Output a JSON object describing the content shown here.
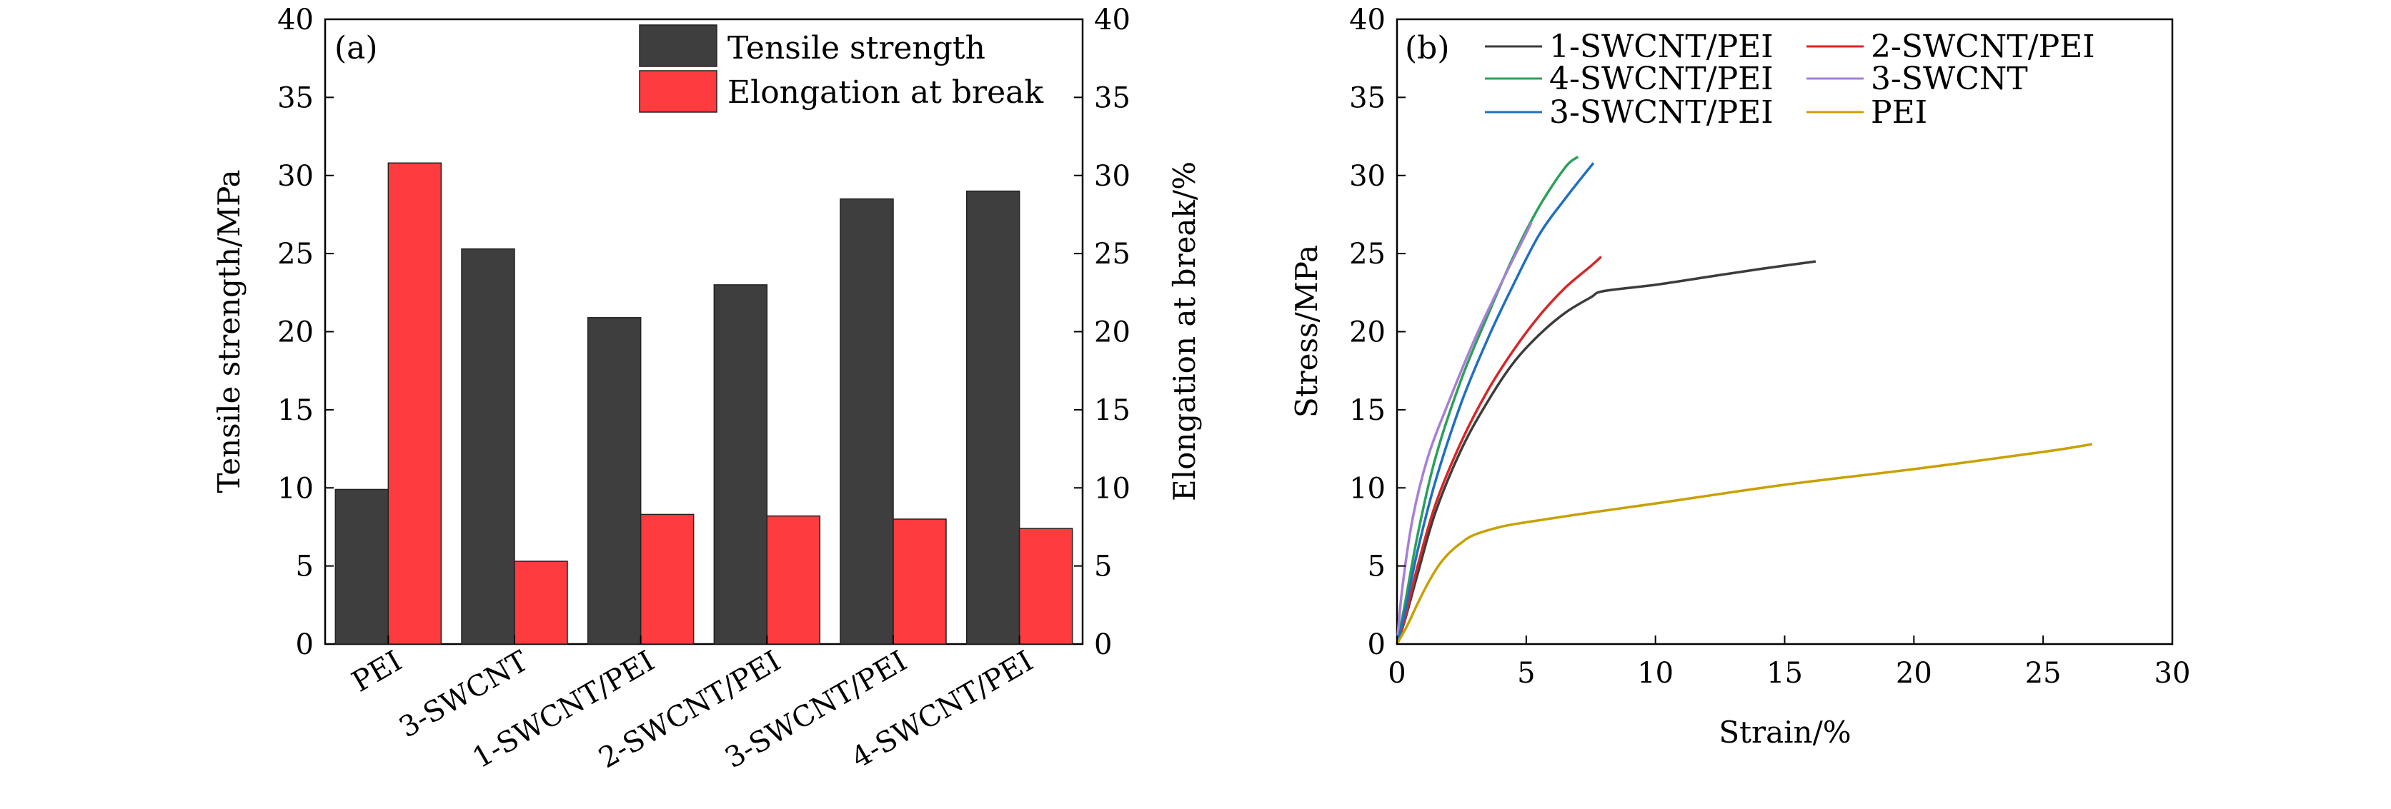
{
  "chart_data": [
    {
      "type": "bar",
      "panel_label": "(a)",
      "categories": [
        "PEI",
        "3-SWCNT",
        "1-SWCNT/PEI",
        "2-SWCNT/PEI",
        "3-SWCNT/PEI",
        "4-SWCNT/PEI"
      ],
      "series": [
        {
          "name": "Tensile strength",
          "axis": "left",
          "color": "#3e3e3e",
          "values": [
            9.9,
            25.3,
            20.9,
            23.0,
            28.5,
            29.0
          ]
        },
        {
          "name": "Elongation at break",
          "axis": "right",
          "color": "#fe3b3f",
          "values": [
            30.8,
            5.3,
            8.3,
            8.2,
            8.0,
            7.4
          ]
        }
      ],
      "ylabel": "Tensile strength/MPa",
      "y2label": "Elongation at break/%",
      "ylim": [
        0,
        40
      ],
      "y2lim": [
        0,
        40
      ],
      "yticks": [
        0,
        5,
        10,
        15,
        20,
        25,
        30,
        35,
        40
      ],
      "legend_position": "top-right",
      "grid": false
    },
    {
      "type": "line",
      "panel_label": "(b)",
      "xlabel": "Strain/%",
      "ylabel": "Stress/MPa",
      "xlim": [
        0,
        30
      ],
      "ylim": [
        0,
        40
      ],
      "xticks": [
        0,
        5,
        10,
        15,
        20,
        25,
        30
      ],
      "yticks": [
        0,
        5,
        10,
        15,
        20,
        25,
        30,
        35,
        40
      ],
      "legend_position": "top",
      "grid": false,
      "series": [
        {
          "name": "1-SWCNT/PEI",
          "color": "#3c3c3c",
          "x": [
            0,
            0.3,
            0.8,
            1.5,
            2.5,
            3.5,
            4.5,
            5.5,
            6.5,
            7.5,
            8.0,
            10,
            12,
            14,
            16.2
          ],
          "y": [
            0,
            1.5,
            4.5,
            8.5,
            12.5,
            15.5,
            18.0,
            19.8,
            21.2,
            22.2,
            22.6,
            23.0,
            23.5,
            24.0,
            24.5
          ]
        },
        {
          "name": "2-SWCNT/PEI",
          "color": "#d62728",
          "x": [
            0,
            0.3,
            0.8,
            1.5,
            2.5,
            3.5,
            4.5,
            5.5,
            6.5,
            7.5,
            7.9
          ],
          "y": [
            0,
            1.6,
            5.0,
            9.0,
            13.0,
            16.2,
            18.8,
            21.0,
            22.8,
            24.2,
            24.8
          ]
        },
        {
          "name": "4-SWCNT/PEI",
          "color": "#2ca05a",
          "x": [
            0,
            0.3,
            0.8,
            1.5,
            2.5,
            3.5,
            4.5,
            5.5,
            6.5,
            7.0
          ],
          "y": [
            0,
            2.5,
            7.0,
            12.0,
            17.0,
            21.0,
            24.8,
            28.0,
            30.5,
            31.2
          ]
        },
        {
          "name": "3-SWCNT",
          "color": "#a77fd6",
          "x": [
            0,
            0.2,
            0.6,
            1.2,
            2.0,
            3.0,
            4.0,
            5.0,
            5.2
          ],
          "y": [
            0,
            3.5,
            8.0,
            12.0,
            15.5,
            19.5,
            23.0,
            26.3,
            27.0
          ]
        },
        {
          "name": "3-SWCNT/PEI",
          "color": "#1f6fc2",
          "x": [
            0,
            0.3,
            0.8,
            1.5,
            2.5,
            3.5,
            4.5,
            5.5,
            6.5,
            7.6
          ],
          "y": [
            0,
            2.0,
            6.0,
            10.5,
            15.5,
            19.5,
            23.0,
            26.2,
            28.5,
            30.8
          ]
        },
        {
          "name": "PEI",
          "color": "#c9a000",
          "x": [
            0,
            0.4,
            0.8,
            1.2,
            1.6,
            2.0,
            2.5,
            3.0,
            4.0,
            5.0,
            7.0,
            10,
            15,
            20,
            25,
            26.9
          ],
          "y": [
            0,
            1.2,
            2.6,
            3.9,
            5.0,
            5.8,
            6.5,
            7.0,
            7.5,
            7.8,
            8.3,
            9.0,
            10.2,
            11.2,
            12.3,
            12.8
          ]
        }
      ]
    }
  ]
}
